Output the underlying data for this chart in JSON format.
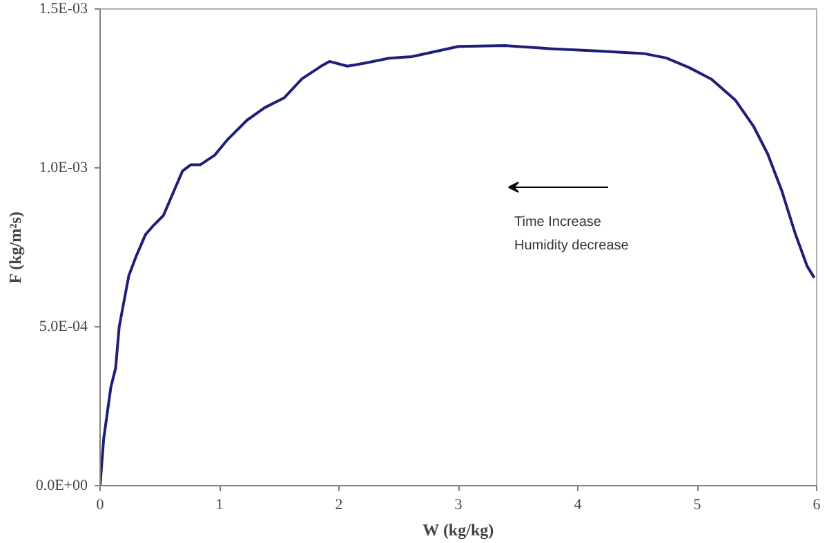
{
  "chart_data": {
    "type": "line",
    "xlabel": "W (kg/kg)",
    "ylabel": "F (kg/m²s)",
    "annotations": [
      "Time Increase",
      "Humidity decrease"
    ],
    "x": [
      0,
      0.03,
      0.09,
      0.13,
      0.16,
      0.24,
      0.3,
      0.38,
      0.45,
      0.53,
      0.61,
      0.69,
      0.76,
      0.84,
      0.96,
      1.07,
      1.23,
      1.38,
      1.54,
      1.69,
      1.85,
      1.92,
      2.07,
      2.22,
      2.42,
      2.61,
      3.0,
      3.39,
      3.77,
      4.16,
      4.55,
      4.74,
      4.93,
      5.12,
      5.32,
      5.47,
      5.59,
      5.71,
      5.82,
      5.92,
      5.98
    ],
    "series": [
      {
        "color": "#1f1f7a",
        "values": [
          0,
          0.000147,
          0.00031,
          0.00037,
          0.0005,
          0.00066,
          0.00072,
          0.00079,
          0.00082,
          0.00085,
          0.00092,
          0.00099,
          0.00101,
          0.00101,
          0.00104,
          0.00109,
          0.00115,
          0.00119,
          0.00122,
          0.00128,
          0.00132,
          0.001335,
          0.00132,
          0.00133,
          0.001345,
          0.00135,
          0.001382,
          0.001385,
          0.001375,
          0.001368,
          0.00136,
          0.001346,
          0.001316,
          0.001279,
          0.001213,
          0.001132,
          0.001044,
          0.000926,
          0.000794,
          0.000691,
          0.000654
        ]
      }
    ],
    "xlim": [
      0,
      6
    ],
    "xticks": [
      0,
      1,
      2,
      3,
      4,
      5,
      6
    ],
    "ylim": [
      0,
      0.0015
    ],
    "yticks": [
      {
        "value": 0,
        "label": "0.0E+00"
      },
      {
        "value": 0.0005,
        "label": "5.0E-04"
      },
      {
        "value": 0.001,
        "label": "1.0E-03"
      },
      {
        "value": 0.0015,
        "label": "1.5E-03"
      }
    ],
    "grid": false,
    "marker": "none",
    "line_style": "solid"
  }
}
